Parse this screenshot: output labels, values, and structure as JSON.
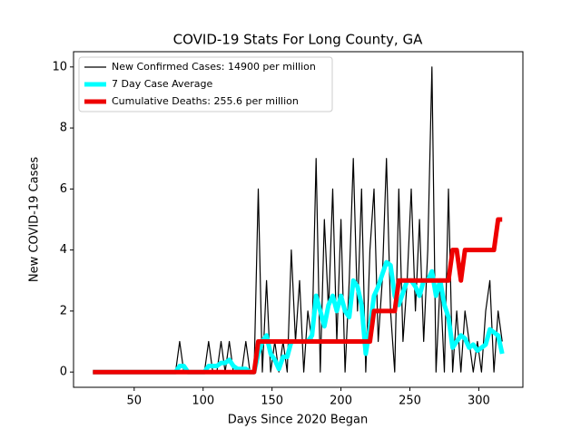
{
  "chart_data": {
    "type": "line",
    "title": "COVID-19 Stats For Long County, GA",
    "xlabel": "Days Since 2020 Began",
    "ylabel": "New COVID-19 Cases",
    "x": [
      20,
      23,
      26,
      29,
      32,
      35,
      38,
      41,
      44,
      47,
      50,
      53,
      56,
      59,
      62,
      65,
      68,
      71,
      74,
      77,
      80,
      83,
      86,
      89,
      92,
      95,
      98,
      101,
      104,
      107,
      110,
      113,
      116,
      119,
      122,
      125,
      128,
      131,
      134,
      137,
      140,
      143,
      146,
      149,
      152,
      155,
      158,
      161,
      164,
      167,
      170,
      173,
      176,
      179,
      182,
      185,
      188,
      191,
      194,
      197,
      200,
      203,
      206,
      209,
      212,
      215,
      218,
      221,
      224,
      227,
      230,
      233,
      236,
      239,
      242,
      245,
      248,
      251,
      254,
      257,
      260,
      263,
      266,
      269,
      272,
      275,
      278,
      281,
      284,
      287,
      290,
      293,
      296,
      299,
      302,
      305,
      308,
      311,
      314,
      317
    ],
    "series": [
      {
        "name": "New Confirmed Cases: 14900 per million",
        "color": "#000000",
        "values": [
          0,
          0,
          0,
          0,
          0,
          0,
          0,
          0,
          0,
          0,
          0,
          0,
          0,
          0,
          0,
          0,
          0,
          0,
          0,
          0,
          0,
          1,
          0,
          0,
          0,
          0,
          0,
          0,
          1,
          0,
          0,
          1,
          0,
          1,
          0,
          0,
          0,
          1,
          0,
          0,
          6,
          0,
          3,
          0,
          1,
          0,
          1,
          0,
          4,
          1,
          3,
          0,
          2,
          1,
          7,
          0,
          5,
          2,
          6,
          1,
          5,
          0,
          3,
          7,
          2,
          6,
          0,
          4,
          6,
          1,
          3,
          7,
          2,
          0,
          6,
          1,
          3,
          6,
          2,
          5,
          1,
          4,
          10,
          0,
          3,
          0,
          6,
          0,
          2,
          0,
          2,
          1,
          0,
          1,
          0,
          2,
          3,
          0,
          2,
          1
        ]
      },
      {
        "name": "7 Day Case Average",
        "color": "#00ffff",
        "values": [
          0,
          0,
          0,
          0,
          0,
          0,
          0,
          0,
          0,
          0,
          0,
          0,
          0,
          0,
          0,
          0,
          0,
          0,
          0,
          0,
          0,
          0.2,
          0.2,
          0,
          0,
          0,
          0,
          0,
          0.2,
          0.2,
          0.2,
          0.3,
          0.3,
          0.4,
          0.2,
          0.1,
          0.1,
          0.1,
          0,
          0,
          0.6,
          1,
          1.2,
          0.6,
          0.4,
          0.1,
          0.5,
          0.5,
          1,
          1,
          1,
          1,
          1,
          1.2,
          2.5,
          2,
          1.5,
          2.2,
          2.5,
          2,
          2.5,
          2,
          1.8,
          3,
          2.8,
          2.2,
          0.6,
          1.5,
          2.5,
          2.8,
          3.2,
          3.6,
          3.5,
          2.5,
          2.2,
          2.6,
          3,
          3,
          2.8,
          2.5,
          3,
          3,
          3.3,
          2.5,
          3,
          2.2,
          1.8,
          0.8,
          1,
          1.2,
          1.1,
          0.8,
          0.9,
          0.7,
          0.8,
          0.9,
          1.4,
          1.3,
          1.2,
          0.6
        ]
      },
      {
        "name": "Cumulative Deaths: 255.6 per million",
        "color": "#ee0000",
        "values": [
          0,
          0,
          0,
          0,
          0,
          0,
          0,
          0,
          0,
          0,
          0,
          0,
          0,
          0,
          0,
          0,
          0,
          0,
          0,
          0,
          0,
          0,
          0,
          0,
          0,
          0,
          0,
          0,
          0,
          0,
          0,
          0,
          0,
          0,
          0,
          0,
          0,
          0,
          0,
          0,
          1,
          1,
          1,
          1,
          1,
          1,
          1,
          1,
          1,
          1,
          1,
          1,
          1,
          1,
          1,
          1,
          1,
          1,
          1,
          1,
          1,
          1,
          1,
          1,
          1,
          1,
          1,
          1,
          2,
          2,
          2,
          2,
          2,
          2,
          3,
          3,
          3,
          3,
          3,
          3,
          3,
          3,
          3,
          3,
          3,
          3,
          3,
          4,
          4,
          3,
          4,
          4,
          4,
          4,
          4,
          4,
          4,
          4,
          5,
          5
        ]
      }
    ],
    "xlim": [
      6,
      332
    ],
    "xticks": [
      50,
      100,
      150,
      200,
      250,
      300
    ],
    "ylim": [
      -0.5,
      10.5
    ],
    "yticks": [
      0,
      2,
      4,
      6,
      8,
      10
    ],
    "legend": "upper left"
  }
}
